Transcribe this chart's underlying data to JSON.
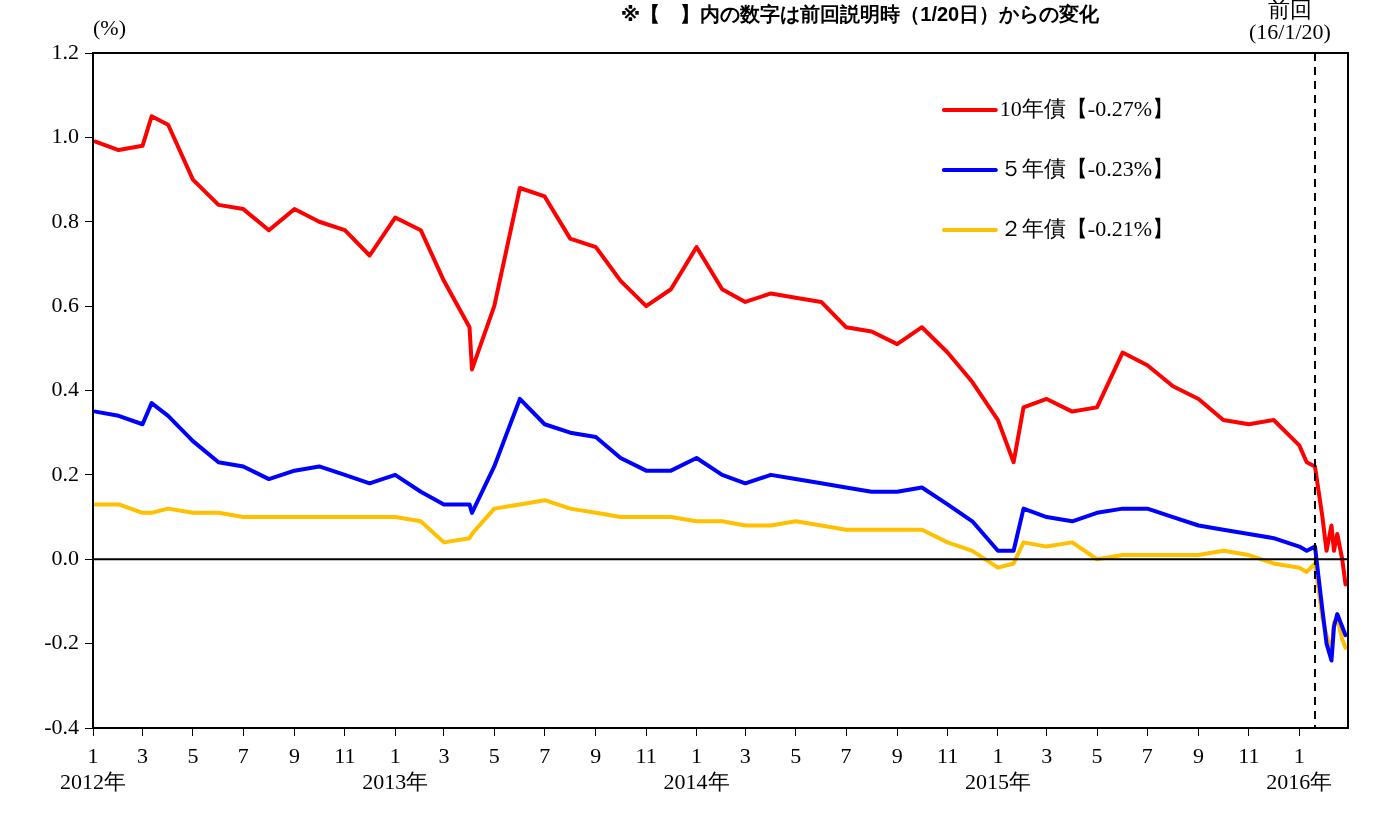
{
  "chart_data": {
    "type": "line",
    "title": "※【　】内の数字は前回説明時（1/20日）からの変化",
    "ylabel": "(%)",
    "x": [
      "2012-01-04",
      "2012-02-01",
      "2012-03-01",
      "2012-03-12",
      "2012-04-01",
      "2012-05-01",
      "2012-06-01",
      "2012-07-01",
      "2012-08-01",
      "2012-09-01",
      "2012-10-01",
      "2012-11-01",
      "2012-12-01",
      "2013-01-01",
      "2013-02-01",
      "2013-03-01",
      "2013-04-01",
      "2013-04-04",
      "2013-05-01",
      "2013-06-01",
      "2013-07-01",
      "2013-08-01",
      "2013-09-01",
      "2013-10-01",
      "2013-11-01",
      "2013-12-01",
      "2014-01-01",
      "2014-02-01",
      "2014-03-01",
      "2014-04-01",
      "2014-05-01",
      "2014-06-01",
      "2014-07-01",
      "2014-08-01",
      "2014-09-01",
      "2014-10-01",
      "2014-11-01",
      "2014-12-01",
      "2015-01-01",
      "2015-01-20",
      "2015-02-01",
      "2015-03-01",
      "2015-04-01",
      "2015-05-01",
      "2015-06-01",
      "2015-07-01",
      "2015-08-01",
      "2015-09-01",
      "2015-10-01",
      "2015-11-01",
      "2015-12-01",
      "2016-01-01",
      "2016-01-10",
      "2016-01-20",
      "2016-01-29",
      "2016-02-03",
      "2016-02-09",
      "2016-02-12",
      "2016-02-16",
      "2016-02-22",
      "2016-02-26"
    ],
    "series": [
      {
        "name": "10年債【-0.27%】",
        "color": "#ff0000",
        "values": [
          0.99,
          0.97,
          0.98,
          1.05,
          1.03,
          0.9,
          0.84,
          0.83,
          0.78,
          0.83,
          0.8,
          0.78,
          0.72,
          0.81,
          0.78,
          0.66,
          0.55,
          0.45,
          0.6,
          0.88,
          0.86,
          0.76,
          0.74,
          0.66,
          0.6,
          0.64,
          0.74,
          0.64,
          0.61,
          0.63,
          0.62,
          0.61,
          0.55,
          0.54,
          0.51,
          0.55,
          0.49,
          0.42,
          0.33,
          0.23,
          0.36,
          0.38,
          0.35,
          0.36,
          0.49,
          0.46,
          0.41,
          0.38,
          0.33,
          0.32,
          0.33,
          0.27,
          0.23,
          0.22,
          0.1,
          0.02,
          0.08,
          0.02,
          0.06,
          0.0,
          -0.06
        ]
      },
      {
        "name": "５年債【-0.23%】",
        "color": "#0000ff",
        "values": [
          0.35,
          0.34,
          0.32,
          0.37,
          0.34,
          0.28,
          0.23,
          0.22,
          0.19,
          0.21,
          0.22,
          0.2,
          0.18,
          0.2,
          0.16,
          0.13,
          0.13,
          0.11,
          0.22,
          0.38,
          0.32,
          0.3,
          0.29,
          0.24,
          0.21,
          0.21,
          0.24,
          0.2,
          0.18,
          0.2,
          0.19,
          0.18,
          0.17,
          0.16,
          0.16,
          0.17,
          0.13,
          0.09,
          0.02,
          0.02,
          0.12,
          0.1,
          0.09,
          0.11,
          0.12,
          0.12,
          0.1,
          0.08,
          0.07,
          0.06,
          0.05,
          0.03,
          0.02,
          0.03,
          -0.12,
          -0.2,
          -0.24,
          -0.16,
          -0.13,
          -0.16,
          -0.18
        ]
      },
      {
        "name": "２年債【-0.21%】",
        "color": "#ffc000",
        "values": [
          0.13,
          0.13,
          0.11,
          0.11,
          0.12,
          0.11,
          0.11,
          0.1,
          0.1,
          0.1,
          0.1,
          0.1,
          0.1,
          0.1,
          0.09,
          0.04,
          0.05,
          0.06,
          0.12,
          0.13,
          0.14,
          0.12,
          0.11,
          0.1,
          0.1,
          0.1,
          0.09,
          0.09,
          0.08,
          0.08,
          0.09,
          0.08,
          0.07,
          0.07,
          0.07,
          0.07,
          0.04,
          0.02,
          -0.02,
          -0.01,
          0.04,
          0.03,
          0.04,
          0.0,
          0.01,
          0.01,
          0.01,
          0.01,
          0.02,
          0.01,
          -0.01,
          -0.02,
          -0.03,
          -0.01,
          -0.14,
          -0.18,
          -0.22,
          -0.15,
          -0.14,
          -0.19,
          -0.21
        ]
      }
    ],
    "xlim": [
      "2012-01-01",
      "2016-02-29"
    ],
    "xticks": [
      {
        "value": "2012-01",
        "label": "1\n2012年"
      },
      {
        "value": "2012-03",
        "label": "3"
      },
      {
        "value": "2012-05",
        "label": "5"
      },
      {
        "value": "2012-07",
        "label": "7"
      },
      {
        "value": "2012-09",
        "label": "9"
      },
      {
        "value": "2012-11",
        "label": "11"
      },
      {
        "value": "2013-01",
        "label": "1\n2013年"
      },
      {
        "value": "2013-03",
        "label": "3"
      },
      {
        "value": "2013-05",
        "label": "5"
      },
      {
        "value": "2013-07",
        "label": "7"
      },
      {
        "value": "2013-09",
        "label": "9"
      },
      {
        "value": "2013-11",
        "label": "11"
      },
      {
        "value": "2014-01",
        "label": "1\n2014年"
      },
      {
        "value": "2014-03",
        "label": "3"
      },
      {
        "value": "2014-05",
        "label": "5"
      },
      {
        "value": "2014-07",
        "label": "7"
      },
      {
        "value": "2014-09",
        "label": "9"
      },
      {
        "value": "2014-11",
        "label": "11"
      },
      {
        "value": "2015-01",
        "label": "1\n2015年"
      },
      {
        "value": "2015-03",
        "label": "3"
      },
      {
        "value": "2015-05",
        "label": "5"
      },
      {
        "value": "2015-07",
        "label": "7"
      },
      {
        "value": "2015-09",
        "label": "9"
      },
      {
        "value": "2015-11",
        "label": "11"
      },
      {
        "value": "2016-01",
        "label": "1\n2016年"
      }
    ],
    "ylim": [
      -0.4,
      1.2
    ],
    "yticks": [
      {
        "value": -0.4,
        "label": "-0.4"
      },
      {
        "value": -0.2,
        "label": "-0.2"
      },
      {
        "value": 0,
        "label": "0.0"
      },
      {
        "value": 0.2,
        "label": "0.2"
      },
      {
        "value": 0.4,
        "label": "0.4"
      },
      {
        "value": 0.6,
        "label": "0.6"
      },
      {
        "value": 0.8,
        "label": "0.8"
      },
      {
        "value": 1,
        "label": "1.0"
      },
      {
        "value": 1.2,
        "label": "1.2"
      }
    ],
    "ref_lines": [
      {
        "axis": "x",
        "value": "2016-01-20",
        "label": "前回\n(16/1/20)",
        "color": "#000000",
        "line_style": "dashed"
      },
      {
        "axis": "y",
        "value": 0,
        "color": "#000000",
        "line_style": "solid"
      }
    ],
    "grid": false,
    "legend": "top right",
    "marker": "none",
    "line_style": "solid"
  }
}
